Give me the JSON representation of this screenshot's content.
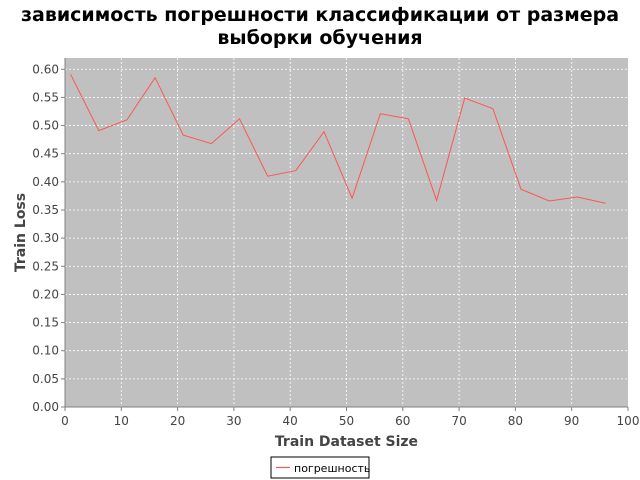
{
  "chart_data": {
    "type": "line",
    "title_lines": [
      "зависимость погрешности классификации от размера",
      "выборки обучения"
    ],
    "xlabel": "Train Dataset Size",
    "ylabel": "Train Loss",
    "xlim": [
      0,
      100
    ],
    "ylim": [
      0,
      0.62
    ],
    "x_ticks": [
      0,
      10,
      20,
      30,
      40,
      50,
      60,
      70,
      80,
      90,
      100
    ],
    "x_tick_labels": [
      "0",
      "10",
      "20",
      "30",
      "40",
      "50",
      "60",
      "70",
      "80",
      "90",
      "100"
    ],
    "y_ticks": [
      0,
      0.05,
      0.1,
      0.15,
      0.2,
      0.25,
      0.3,
      0.35,
      0.4,
      0.45,
      0.5,
      0.55,
      0.6
    ],
    "y_tick_labels": [
      "0.00",
      "0.05",
      "0.10",
      "0.15",
      "0.20",
      "0.25",
      "0.30",
      "0.35",
      "0.40",
      "0.45",
      "0.50",
      "0.55",
      "0.60"
    ],
    "grid": true,
    "legend_position": "bottom-center",
    "series": [
      {
        "name": "погрешность",
        "color": "#ff5555",
        "x": [
          1,
          6,
          11,
          16,
          21,
          26,
          31,
          36,
          41,
          46,
          51,
          56,
          61,
          66,
          71,
          76,
          81,
          86,
          91,
          96
        ],
        "y": [
          0.591,
          0.491,
          0.51,
          0.585,
          0.483,
          0.468,
          0.512,
          0.41,
          0.42,
          0.489,
          0.371,
          0.521,
          0.512,
          0.367,
          0.549,
          0.53,
          0.387,
          0.366,
          0.373,
          0.362
        ]
      }
    ]
  },
  "colors": {
    "plot_background": "#c0c0c0",
    "gridline": "#ffffff",
    "axis": "#808080",
    "tick_label": "#444444",
    "axis_label": "#444444"
  }
}
